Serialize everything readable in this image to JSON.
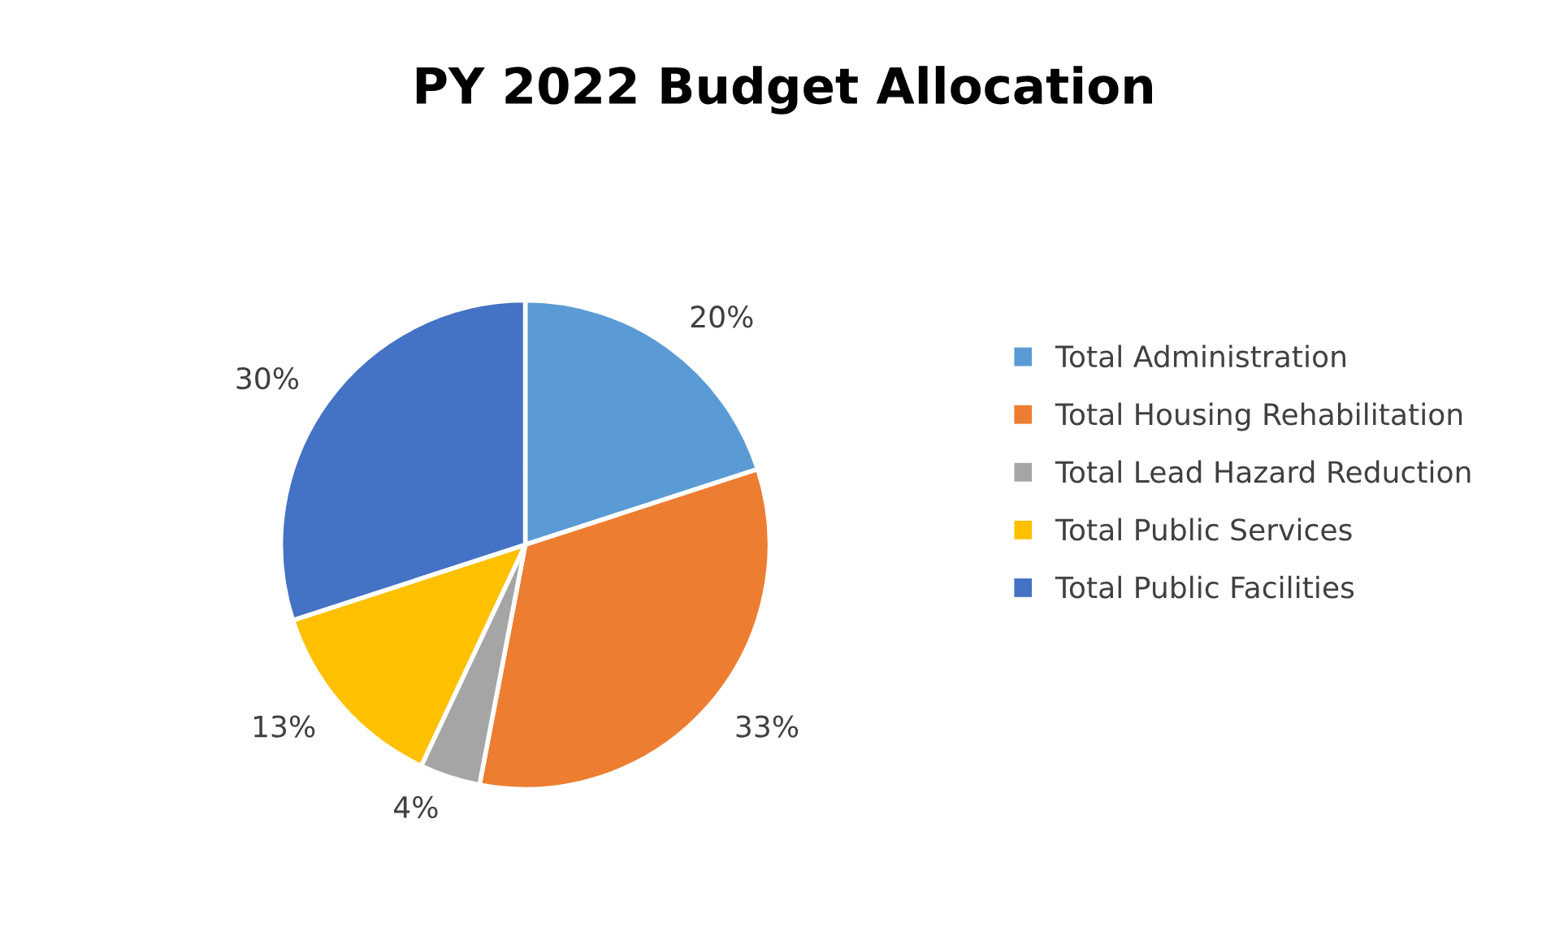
{
  "chart_data": {
    "type": "pie",
    "title": "PY 2022 Budget Allocation",
    "categories": [
      "Total Administration",
      "Total Housing Rehabilitation",
      "Total Lead Hazard Reduction",
      "Total Public Services",
      "Total Public Facilities"
    ],
    "values": [
      20,
      33,
      4,
      13,
      30
    ],
    "colors": [
      "#5b9bd5",
      "#ed7d31",
      "#a5a5a5",
      "#ffc000",
      "#4472c4"
    ],
    "value_labels": [
      "20%",
      "33%",
      "4%",
      "13%",
      "30%"
    ],
    "legend": "right"
  }
}
